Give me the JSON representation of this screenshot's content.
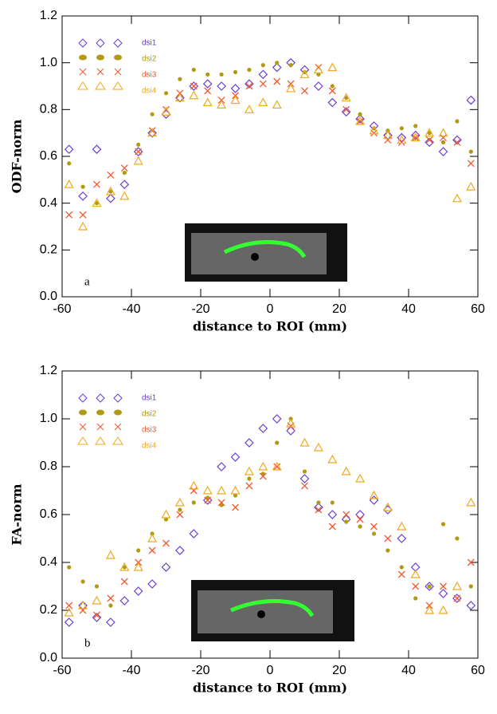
{
  "chart_data": [
    {
      "type": "scatter",
      "y_label": "ODF-norm",
      "x_label": "distance to ROI (mm)",
      "panel_label": "a",
      "xlim": [
        -60,
        60
      ],
      "xticks": [
        -60,
        -40,
        -20,
        0,
        20,
        40,
        60
      ],
      "ylim": [
        0,
        1.2
      ],
      "yticks": [
        {
          "value": 0,
          "label": "0.0"
        },
        0.2,
        0.4,
        0.6,
        0.8,
        {
          "value": 1,
          "label": "1.0"
        },
        1.2
      ],
      "x": [
        -58,
        -54,
        -50,
        -46,
        -42,
        -38,
        -34,
        -30,
        -26,
        -22,
        -18,
        -14,
        -10,
        -6,
        -2,
        2,
        6,
        10,
        14,
        18,
        22,
        26,
        30,
        34,
        38,
        42,
        46,
        50,
        54,
        58
      ],
      "series": [
        {
          "name": "dsi1",
          "color": "#6a3fd0",
          "marker": "diamond",
          "values": [
            0.63,
            0.43,
            0.63,
            0.42,
            0.48,
            0.62,
            0.7,
            0.78,
            0.85,
            0.9,
            0.91,
            0.9,
            0.89,
            0.91,
            0.95,
            0.98,
            1.0,
            0.97,
            0.9,
            0.83,
            0.79,
            0.76,
            0.73,
            0.69,
            0.68,
            0.69,
            0.66,
            0.62,
            0.67,
            0.84
          ]
        },
        {
          "name": "dsi2",
          "color": "#b09a10",
          "marker": "circle",
          "values": [
            0.57,
            0.47,
            0.4,
            0.45,
            0.53,
            0.65,
            0.78,
            0.87,
            0.93,
            0.97,
            0.95,
            0.95,
            0.96,
            0.97,
            0.99,
            1.0,
            0.99,
            0.96,
            0.95,
            0.9,
            0.85,
            0.78,
            0.72,
            0.71,
            0.72,
            0.73,
            0.7,
            0.66,
            0.75,
            0.62
          ]
        },
        {
          "name": "dsi3",
          "color": "#f05a30",
          "marker": "x",
          "values": [
            0.35,
            0.35,
            0.48,
            0.52,
            0.55,
            0.62,
            0.71,
            0.8,
            0.87,
            0.9,
            0.88,
            0.84,
            0.86,
            0.9,
            0.91,
            0.92,
            0.91,
            0.88,
            0.98,
            0.88,
            0.8,
            0.75,
            0.7,
            0.67,
            0.66,
            0.68,
            0.67,
            0.68,
            0.66,
            0.57
          ]
        },
        {
          "name": "dsi4",
          "color": "#f0a820",
          "marker": "triangle",
          "values": [
            0.48,
            0.3,
            0.4,
            0.45,
            0.43,
            0.58,
            0.7,
            0.79,
            0.85,
            0.86,
            0.83,
            0.82,
            0.84,
            0.8,
            0.83,
            0.82,
            0.89,
            0.95,
            0.97,
            0.98,
            0.85,
            0.75,
            0.71,
            0.69,
            0.67,
            0.68,
            0.7,
            0.7,
            0.42,
            0.47
          ]
        }
      ]
    },
    {
      "type": "scatter",
      "y_label": "FA-norm",
      "x_label": "distance to ROI (mm)",
      "panel_label": "b",
      "xlim": [
        -60,
        60
      ],
      "xticks": [
        -60,
        -40,
        -20,
        0,
        20,
        40,
        60
      ],
      "ylim": [
        0,
        1.2
      ],
      "yticks": [
        {
          "value": 0,
          "label": "0.0"
        },
        0.2,
        0.4,
        0.6,
        0.8,
        {
          "value": 1,
          "label": "1.0"
        },
        1.2
      ],
      "x": [
        -58,
        -54,
        -50,
        -46,
        -42,
        -38,
        -34,
        -30,
        -26,
        -22,
        -18,
        -14,
        -10,
        -6,
        -2,
        2,
        6,
        10,
        14,
        18,
        22,
        26,
        30,
        34,
        38,
        42,
        46,
        50,
        54,
        58
      ],
      "series": [
        {
          "name": "dsi1",
          "color": "#6a3fd0",
          "marker": "diamond",
          "values": [
            0.15,
            0.22,
            0.17,
            0.15,
            0.24,
            0.28,
            0.31,
            0.38,
            0.45,
            0.52,
            0.66,
            0.8,
            0.84,
            0.9,
            0.96,
            1.0,
            0.95,
            0.75,
            0.63,
            0.6,
            0.58,
            0.6,
            0.66,
            0.62,
            0.5,
            0.38,
            0.3,
            0.27,
            0.25,
            0.22
          ]
        },
        {
          "name": "dsi2",
          "color": "#b09a10",
          "marker": "circle",
          "values": [
            0.38,
            0.32,
            0.3,
            0.22,
            0.38,
            0.45,
            0.52,
            0.58,
            0.62,
            0.65,
            0.67,
            0.64,
            0.68,
            0.75,
            0.77,
            0.9,
            1.0,
            0.78,
            0.65,
            0.65,
            0.57,
            0.55,
            0.52,
            0.45,
            0.38,
            0.25,
            0.3,
            0.56,
            0.5,
            0.3
          ]
        },
        {
          "name": "dsi3",
          "color": "#f05a30",
          "marker": "x",
          "values": [
            0.22,
            0.2,
            0.18,
            0.25,
            0.32,
            0.4,
            0.45,
            0.48,
            0.6,
            0.7,
            0.66,
            0.65,
            0.63,
            0.72,
            0.76,
            0.8,
            0.97,
            0.72,
            0.62,
            0.55,
            0.6,
            0.58,
            0.55,
            0.5,
            0.35,
            0.3,
            0.22,
            0.3,
            0.25,
            0.4
          ]
        },
        {
          "name": "dsi4",
          "color": "#f0a820",
          "marker": "triangle",
          "values": [
            0.19,
            0.22,
            0.24,
            0.43,
            0.38,
            0.38,
            0.5,
            0.6,
            0.65,
            0.72,
            0.7,
            0.7,
            0.7,
            0.78,
            0.8,
            0.8,
            0.98,
            0.9,
            0.88,
            0.83,
            0.78,
            0.75,
            0.68,
            0.63,
            0.55,
            0.35,
            0.2,
            0.2,
            0.3,
            0.65
          ]
        }
      ]
    }
  ]
}
